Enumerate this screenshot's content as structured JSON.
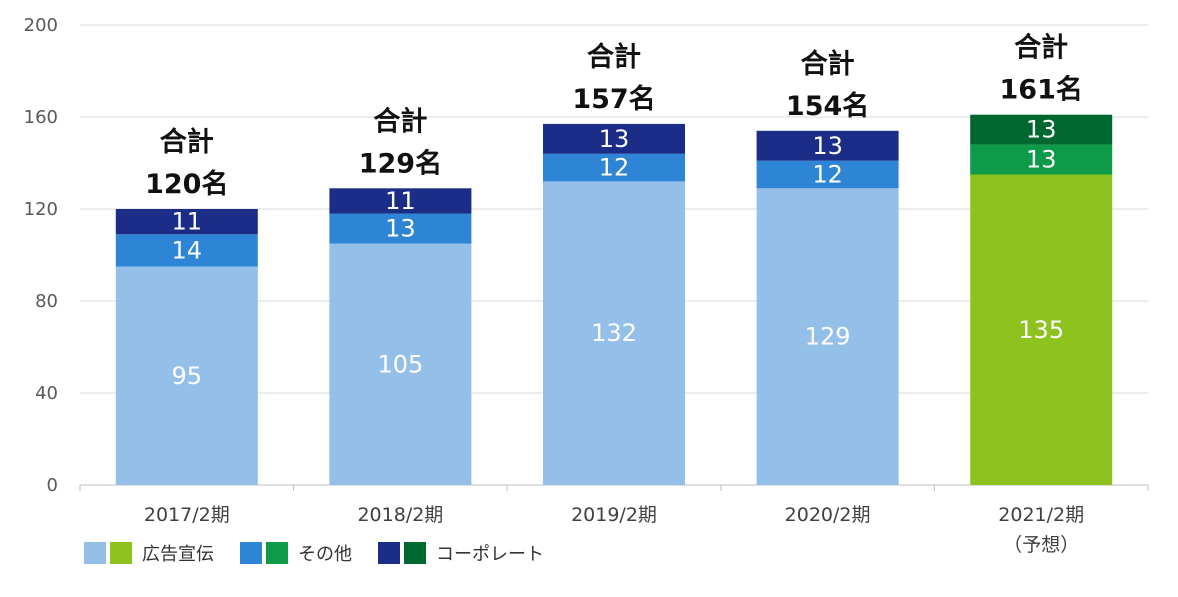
{
  "chart_data": {
    "type": "bar",
    "stacked": true,
    "categories": [
      "2017/2期",
      "2018/2期",
      "2019/2期",
      "2020/2期",
      "2021/2期"
    ],
    "category_sublabels": [
      "",
      "",
      "",
      "",
      "（予想）"
    ],
    "series": [
      {
        "name": "広告宣伝",
        "values": [
          95,
          105,
          132,
          129,
          135
        ]
      },
      {
        "name": "その他",
        "values": [
          14,
          13,
          12,
          12,
          13
        ]
      },
      {
        "name": "コーポレート",
        "values": [
          11,
          11,
          13,
          13,
          13
        ]
      }
    ],
    "totals": [
      120,
      129,
      157,
      154,
      161
    ],
    "total_label_line1": "合計",
    "total_label_suffix": "名",
    "ylim": [
      0,
      200
    ],
    "yticks": [
      0,
      40,
      80,
      120,
      160,
      200
    ],
    "grid": true,
    "legend_position": "bottom-left",
    "colors": {
      "actual": [
        "#94bfe9",
        "#2e85d6",
        "#1b2d87"
      ],
      "forecast": [
        "#8dc21f",
        "#0f9a4a",
        "#00682f"
      ]
    },
    "forecast_index": 4
  }
}
